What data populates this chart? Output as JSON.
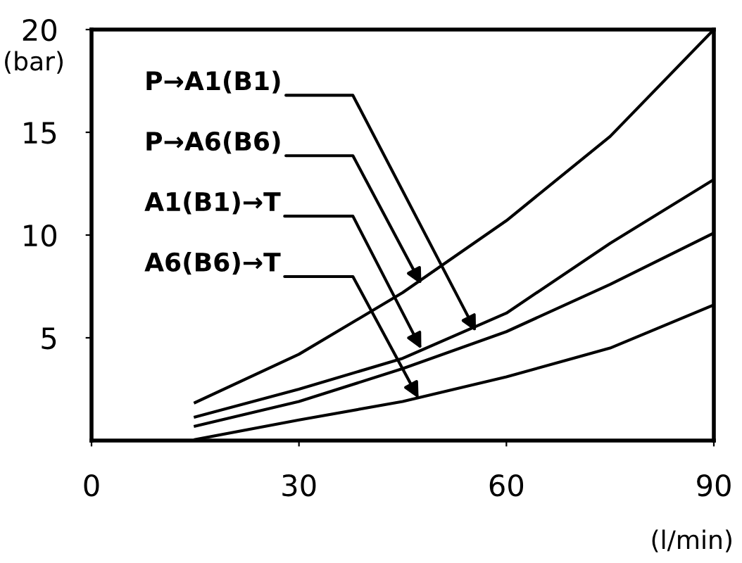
{
  "chart_data": {
    "type": "line",
    "xlabel": "(l/min)",
    "ylabel": "(bar)",
    "xlim": [
      0,
      90
    ],
    "ylim": [
      0,
      20
    ],
    "xticks": [
      0,
      30,
      60,
      90
    ],
    "yticks": [
      5,
      10,
      15,
      20
    ],
    "x": [
      15,
      30,
      45,
      60,
      75,
      90
    ],
    "series": [
      {
        "color": "#000000",
        "values": [
          1.85,
          4.2,
          7.2,
          10.7,
          14.8,
          20
        ]
      },
      {
        "color": "#000000",
        "values": [
          1.15,
          2.5,
          4.0,
          6.2,
          9.6,
          12.7
        ]
      },
      {
        "color": "#000000",
        "values": [
          0.7,
          1.9,
          3.5,
          5.3,
          7.6,
          10.1
        ]
      },
      {
        "color": "#000000",
        "values": [
          0.05,
          1.0,
          1.9,
          3.1,
          4.5,
          6.6
        ]
      }
    ],
    "annotations": [
      {
        "text": "P→A1(B1)",
        "x": 55.6,
        "y": 5.3
      },
      {
        "text": "P→A6(B6)",
        "x": 47.7,
        "y": 7.6
      },
      {
        "text": "A1(B1)→T",
        "x": 47.7,
        "y": 4.45
      },
      {
        "text": "A6(B6)→T",
        "x": 47.3,
        "y": 2.05
      }
    ]
  }
}
